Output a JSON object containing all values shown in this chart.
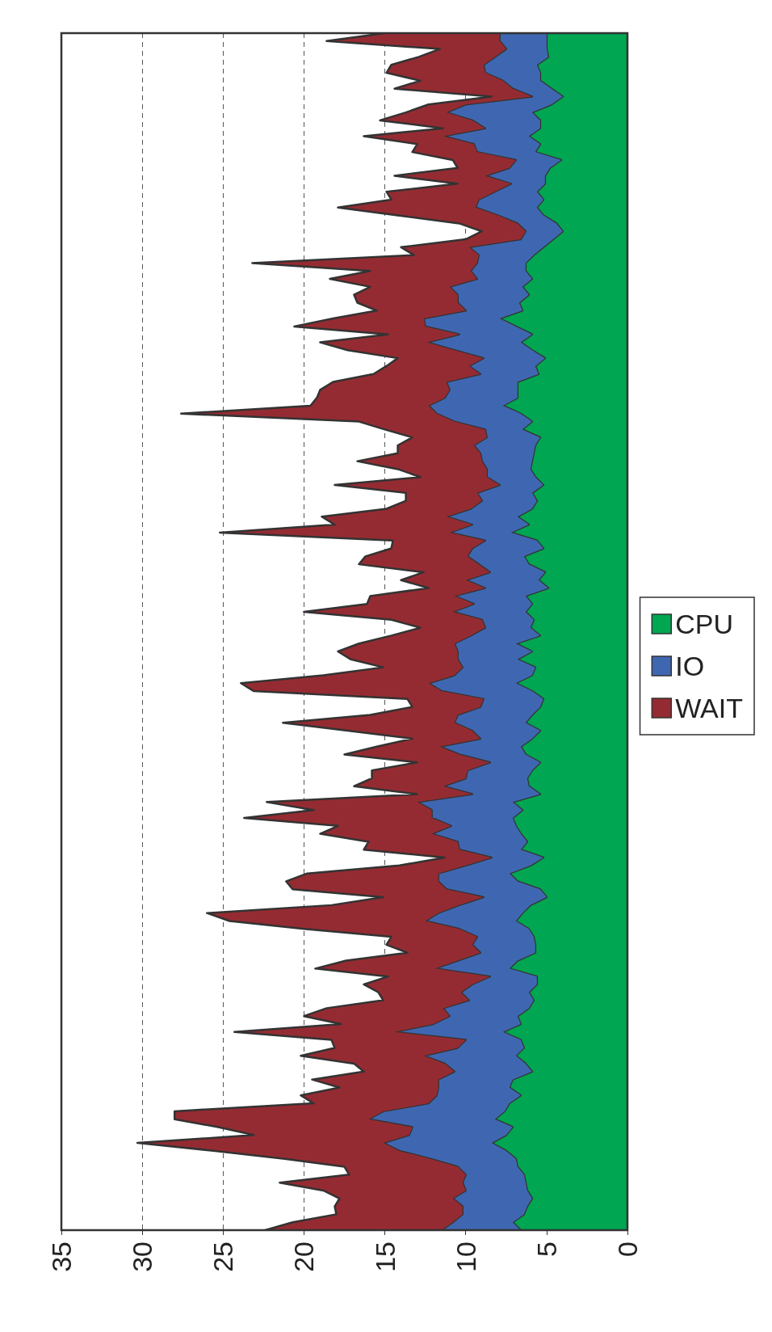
{
  "chart_data": {
    "type": "area",
    "stacked": true,
    "orientation": "horizontal",
    "grid": "x",
    "legend": "right",
    "tick_labels": "x",
    "xlim": [
      35,
      0
    ],
    "xticks": [
      35,
      30,
      25,
      20,
      15,
      10,
      5,
      0
    ],
    "categories": [
      null,
      null,
      null,
      null,
      null,
      null,
      null,
      null,
      null,
      null,
      null,
      null,
      null,
      null,
      null,
      null,
      null,
      null,
      null,
      null,
      null,
      null,
      null,
      null,
      null,
      null,
      null,
      null,
      null,
      null,
      null,
      null,
      null,
      null,
      null,
      null,
      null,
      null,
      null,
      null,
      null,
      null,
      null,
      null,
      null,
      null,
      null,
      null,
      null,
      null,
      null,
      null,
      null,
      null,
      null,
      null,
      null,
      null,
      null,
      null,
      null,
      null,
      null,
      null,
      null,
      null,
      null,
      null,
      null,
      null,
      null,
      null,
      null,
      null,
      null,
      null,
      null,
      null,
      null,
      null,
      null,
      null,
      null,
      null,
      null,
      null,
      null,
      null,
      null,
      null,
      null,
      null,
      null,
      null,
      null,
      null,
      null,
      null,
      null,
      null,
      null,
      null,
      null,
      null,
      null,
      null,
      null,
      null,
      null,
      null,
      null,
      null,
      null,
      null,
      null,
      null,
      null,
      null,
      null,
      null,
      null,
      null,
      null,
      null,
      null,
      null,
      null,
      null,
      null,
      null,
      null,
      null,
      null,
      null,
      null,
      null,
      null,
      null,
      null,
      null,
      null,
      null,
      null,
      null,
      null,
      null,
      null,
      null,
      null,
      null,
      null,
      null
    ],
    "series": [
      {
        "name": "CPU",
        "color": "#00a651",
        "values": [
          5.0,
          5.0,
          5.0,
          4.9,
          5.6,
          5.4,
          5.4,
          4.7,
          4.0,
          4.7,
          5.9,
          5.4,
          5.4,
          6.1,
          5.4,
          5.7,
          4.1,
          4.8,
          5.1,
          5.1,
          5.6,
          5.2,
          5.6,
          5.2,
          4.4,
          4.0,
          4.6,
          5.2,
          5.8,
          6.3,
          6.3,
          5.9,
          6.5,
          6.1,
          6.7,
          6.5,
          7.9,
          6.9,
          5.9,
          6.6,
          5.9,
          5.1,
          5.7,
          5.5,
          6.8,
          6.8,
          6.8,
          7.7,
          6.6,
          5.9,
          6.5,
          5.4,
          5.7,
          5.8,
          5.9,
          6.0,
          5.7,
          5.2,
          5.9,
          5.6,
          5.9,
          6.8,
          6.1,
          7.2,
          5.6,
          5.2,
          6.4,
          6.1,
          5.1,
          5.5,
          4.9,
          6.3,
          5.9,
          6.3,
          5.8,
          6.0,
          5.4,
          6.9,
          5.9,
          6.8,
          5.7,
          5.9,
          6.9,
          5.9,
          5.2,
          5.4,
          5.9,
          6.3,
          5.4,
          5.9,
          6.6,
          6.3,
          5.4,
          5.9,
          6.2,
          6.1,
          5.4,
          7.1,
          6.5,
          7.1,
          6.9,
          6.6,
          6.2,
          6.6,
          5.2,
          6.0,
          7.3,
          6.8,
          5.4,
          5.0,
          6.0,
          6.5,
          6.9,
          6.1,
          5.8,
          5.7,
          5.7,
          6.8,
          7.3,
          5.6,
          5.6,
          6.1,
          5.8,
          6.1,
          6.8,
          6.6,
          7.7,
          6.6,
          6.4,
          6.9,
          6.3,
          5.9,
          7.1,
          7.3,
          6.6,
          7.3,
          7.6,
          8.2,
          7.1,
          7.5,
          8.4,
          7.5,
          6.9,
          6.8,
          6.4,
          6.3,
          6.2,
          5.9,
          6.2,
          6.4,
          7.1,
          6.6
        ]
      },
      {
        "name": "IO",
        "color": "#3f67b1",
        "values": [
          2.9,
          2.9,
          2.5,
          3.3,
          3.3,
          3.4,
          2.3,
          2.4,
          1.9,
          5.3,
          5.3,
          4.2,
          3.4,
          5.3,
          4.1,
          3.6,
          2.8,
          2.5,
          3.7,
          2.1,
          2.6,
          4.0,
          3.8,
          2.8,
          2.4,
          2.3,
          2.0,
          4.6,
          3.4,
          3.0,
          3.4,
          3.4,
          4.5,
          4.4,
          3.8,
          3.5,
          4.7,
          5.6,
          4.5,
          5.8,
          4.8,
          3.8,
          4.1,
          3.6,
          4.4,
          4.2,
          4.5,
          4.6,
          5.2,
          4.8,
          2.3,
          3.3,
          3.8,
          3.3,
          3.1,
          2.7,
          3.0,
          2.7,
          3.4,
          3.4,
          3.8,
          4.4,
          3.5,
          3.8,
          3.2,
          4.4,
          3.5,
          3.1,
          3.4,
          4.5,
          3.9,
          4.4,
          3.6,
          4.5,
          3.2,
          2.8,
          4.3,
          3.8,
          4.6,
          3.7,
          4.5,
          4.8,
          5.4,
          5.6,
          3.7,
          3.7,
          4.6,
          4.4,
          4.2,
          3.2,
          5.0,
          4.1,
          3.1,
          4.0,
          3.8,
          5.3,
          4.2,
          5.9,
          5.6,
          5.0,
          4.0,
          5.5,
          4.3,
          3.8,
          3.2,
          4.0,
          4.4,
          4.9,
          5.8,
          3.9,
          4.4,
          5.2,
          5.6,
          4.3,
          3.5,
          3.9,
          3.4,
          3.7,
          4.6,
          2.9,
          4.0,
          4.2,
          4.0,
          5.3,
          4.2,
          5.4,
          6.7,
          3.4,
          4.1,
          5.7,
          5.0,
          4.8,
          4.6,
          4.4,
          5.2,
          5.0,
          7.5,
          7.8,
          6.2,
          6.0,
          6.7,
          6.6,
          5.3,
          3.7,
          3.6,
          3.9,
          3.8,
          4.9,
          4.0,
          3.8,
          3.7,
          4.9
        ]
      },
      {
        "name": "WAIT",
        "color": "#952b32",
        "values": [
          7.1,
          10.7,
          4.1,
          4.7,
          5.7,
          6.1,
          5.1,
          7.3,
          2.5,
          2.3,
          2.5,
          5.7,
          2.6,
          4.9,
          3.5,
          4.0,
          3.9,
          3.2,
          5.6,
          3.3,
          6.7,
          5.4,
          8.5,
          6.2,
          3.6,
          2.7,
          3.4,
          4.2,
          4.0,
          13.9,
          6.2,
          9.1,
          4.9,
          6.4,
          6.2,
          5.5,
          5.6,
          8.1,
          4.4,
          6.6,
          6.6,
          5.3,
          5.1,
          6.6,
          7.0,
          8.0,
          7.9,
          7.3,
          15.8,
          5.9,
          6.2,
          4.6,
          4.7,
          5.1,
          7.7,
          5.5,
          4.1,
          10.2,
          4.4,
          4.7,
          5.2,
          7.7,
          8.5,
          14.2,
          5.7,
          5.0,
          6.3,
          7.4,
          4.1,
          4.0,
          3.5,
          5.2,
          6.6,
          9.2,
          5.6,
          4.0,
          4.9,
          5.9,
          7.4,
          6.6,
          4.9,
          8.1,
          11.6,
          11.6,
          4.7,
          4.2,
          5.4,
          10.6,
          7.7,
          4.2,
          3.9,
          7.1,
          4.5,
          5.9,
          5.8,
          5.5,
          3.4,
          9.3,
          7.3,
          11.6,
          7.0,
          6.9,
          5.5,
          5.9,
          2.9,
          4.1,
          8.1,
          9.4,
          9.5,
          6.2,
          7.9,
          14.3,
          12.1,
          9.6,
          5.3,
          5.3,
          4.5,
          6.9,
          7.4,
          6.3,
          6.7,
          5.1,
          5.3,
          7.2,
          9.0,
          5.7,
          9.9,
          8.3,
          7.6,
          7.6,
          5.6,
          5.6,
          7.8,
          6.1,
          8.4,
          7.1,
          12.9,
          12.0,
          12.0,
          9.6,
          15.2,
          11.4,
          9.0,
          7.0,
          7.2,
          11.3,
          8.8,
          7.0,
          7.9,
          7.8,
          9.9,
          10.9
        ]
      }
    ]
  }
}
